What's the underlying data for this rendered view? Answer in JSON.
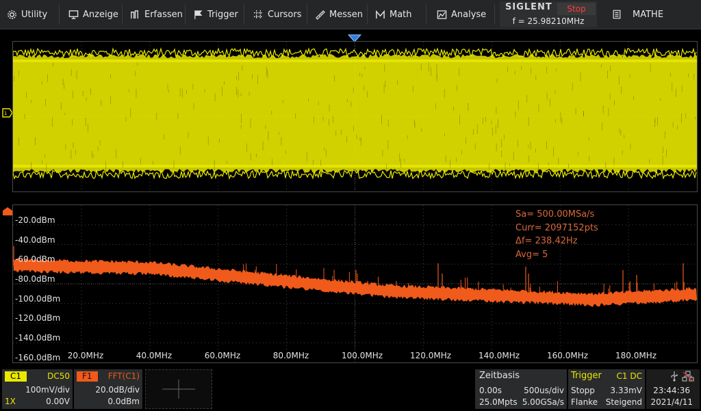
{
  "menu": {
    "utility": "Utility",
    "display": "Anzeige",
    "acquire": "Erfassen",
    "trigger": "Trigger",
    "cursors": "Cursors",
    "measure": "Messen",
    "math": "Math",
    "analysis": "Analyse"
  },
  "brand": "SIGLENT",
  "run_state": "Stop",
  "frequency": "f = 25.98210MHz",
  "mode_label": "MATHE",
  "colors": {
    "ch1": "#e8e800",
    "fft": "#f05a1a",
    "run_state": "#ff3a3a"
  },
  "fft": {
    "y_labels": [
      "-20.0dBm",
      "-40.0dBm",
      "-60.0dBm",
      "-80.0dBm",
      "-100.0dBm",
      "-120.0dBm",
      "-140.0dBm",
      "-160.0dBm"
    ],
    "x_labels": [
      "20.0MHz",
      "40.0MHz",
      "60.0MHz",
      "80.0MHz",
      "100.0MHz",
      "120.0MHz",
      "140.0MHz",
      "160.0MHz",
      "180.0MHz"
    ],
    "info": {
      "sa": "Sa=  500.00MSa/s",
      "curr": "Curr= 2097152pts",
      "df": "Δf=  238.42Hz",
      "avg": "Avg= 5"
    }
  },
  "ch1": {
    "label": "C1",
    "coupling": "DC50",
    "scale": "100mV/div",
    "probe": "1X",
    "offset": "0.00V"
  },
  "f1": {
    "label": "F1",
    "source": "FFT(C1)",
    "scale": "20.0dB/div",
    "offset": "0.0dBm"
  },
  "timebase": {
    "title": "Zeitbasis",
    "delay": "0.00s",
    "scale": "500us/div",
    "points": "25.0Mpts",
    "rate": "5.00GSa/s"
  },
  "trigger": {
    "title": "Trigger",
    "source": "C1 DC",
    "mode": "Stopp",
    "level": "3.33mV",
    "type": "Flanke",
    "slope": "Steigend"
  },
  "clock": {
    "time": "23:44:36",
    "date": "2021/4/11"
  }
}
